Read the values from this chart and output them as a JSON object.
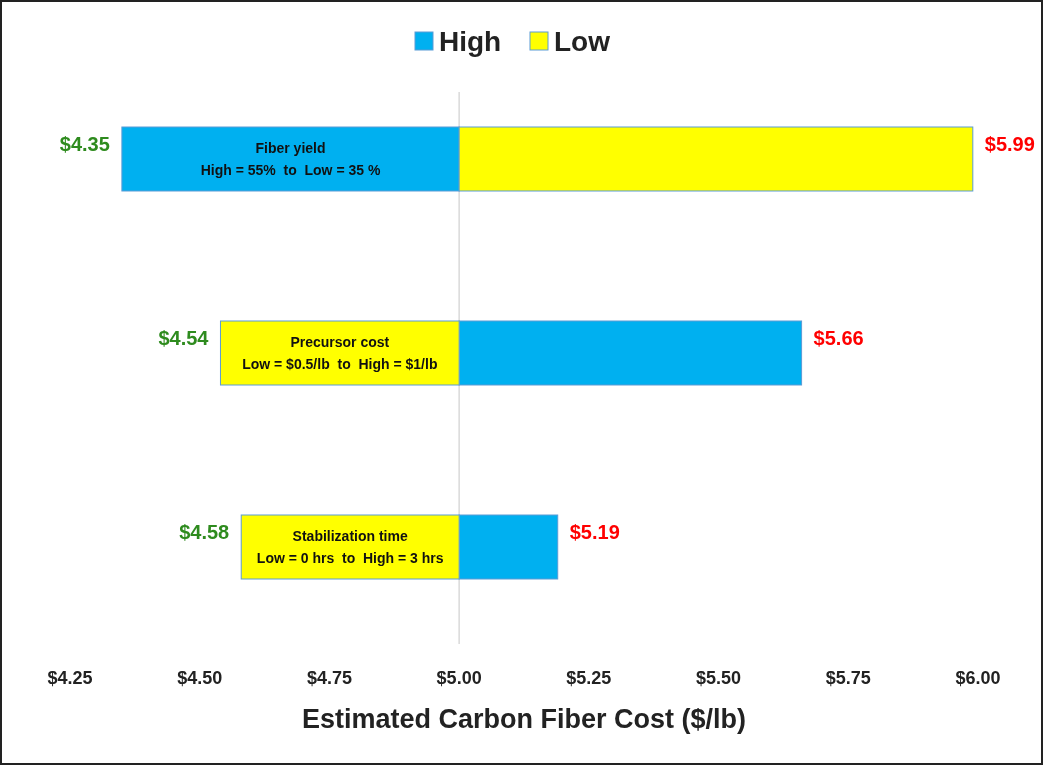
{
  "chart_data": {
    "type": "bar",
    "orientation": "horizontal",
    "xlabel": "Estimated Carbon Fiber Cost ($/lb)",
    "categories": [
      "Fiber yield\nHigh = 55%  to  Low = 35 %",
      "Precursor cost\nLow = $0.5/lb  to  High = $1/lb",
      "Stabilization time\nLow = 0 hrs  to  High = 3 hrs"
    ],
    "series": [
      {
        "name": "High",
        "color": "#00b0f0",
        "base": [
          4.35,
          5.0,
          5.0
        ],
        "values": [
          0.65,
          0.66,
          0.19
        ]
      },
      {
        "name": "Low",
        "color": "#ffff00",
        "base": [
          5.0,
          4.54,
          4.58
        ],
        "values": [
          0.99,
          0.46,
          0.42
        ]
      }
    ],
    "annotations": [
      {
        "text": "$4.35",
        "x": 4.35,
        "y": "Fiber yield\nHigh = 55%  to  Low = 35 %"
      },
      {
        "text": "$5.99",
        "x": 5.99,
        "y": "Fiber yield\nHigh = 55%  to  Low = 35 %"
      },
      {
        "text": "$4.54",
        "x": 4.54,
        "y": "Precursor cost\nLow = $0.5/lb  to  High = $1/lb"
      },
      {
        "text": "$5.66",
        "x": 5.66,
        "y": "Precursor cost\nLow = $0.5/lb  to  High = $1/lb"
      },
      {
        "text": "$4.58",
        "x": 4.58,
        "y": "Stabilization time\nLow = 0 hrs  to  High = 3 hrs"
      },
      {
        "text": "$5.19",
        "x": 5.19,
        "y": "Stabilization time\nLow = 0 hrs  to  High = 3 hrs"
      }
    ],
    "xlim": [
      4.25,
      6.0
    ],
    "xticks": [
      {
        "value": 4.25,
        "label": "$4.25"
      },
      {
        "value": 4.5,
        "label": "$4.50"
      },
      {
        "value": 4.75,
        "label": "$4.75"
      },
      {
        "value": 5.0,
        "label": "$5.00"
      },
      {
        "value": 5.25,
        "label": "$5.25"
      },
      {
        "value": 5.5,
        "label": "$5.50"
      },
      {
        "value": 5.75,
        "label": "$5.75"
      },
      {
        "value": 6.0,
        "label": "$6.00"
      }
    ],
    "ref_lines": [
      {
        "axis": "x",
        "value": 5.0,
        "color": "#d9d9d9"
      }
    ],
    "legend": "top",
    "grid": false
  }
}
